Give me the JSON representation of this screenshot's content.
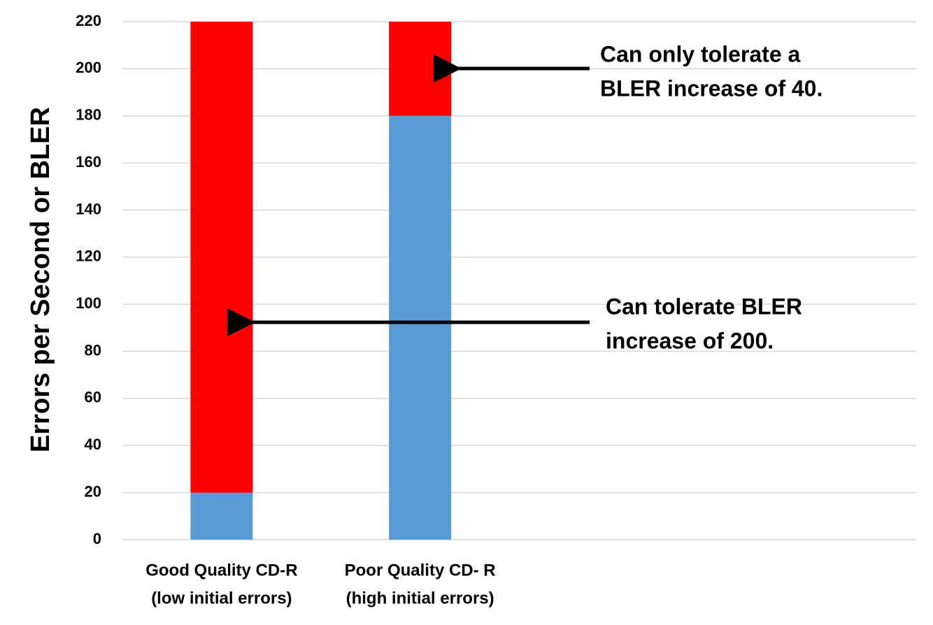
{
  "chart_data": {
    "type": "stacked_bar",
    "y_label": "Errors per Second or BLER",
    "categories": [
      [
        "Good Quality CD-R",
        "(low initial errors)"
      ],
      [
        "Poor Quality CD- R",
        "(high initial errors)"
      ],
      null,
      null
    ],
    "series": [
      {
        "color": "#5b9bd5",
        "values": [
          20,
          180,
          null,
          null
        ]
      },
      {
        "color": "#ff0000",
        "values": [
          200,
          40,
          null,
          null
        ]
      }
    ],
    "ylim": [
      0,
      220
    ],
    "yticks": [
      0,
      20,
      40,
      60,
      80,
      100,
      120,
      140,
      160,
      180,
      200,
      220
    ],
    "grid": true,
    "annotations": [
      [
        "Can only tolerate a",
        "BLER increase of 40."
      ],
      [
        "Can tolerate BLER",
        "increase of 200."
      ]
    ]
  }
}
